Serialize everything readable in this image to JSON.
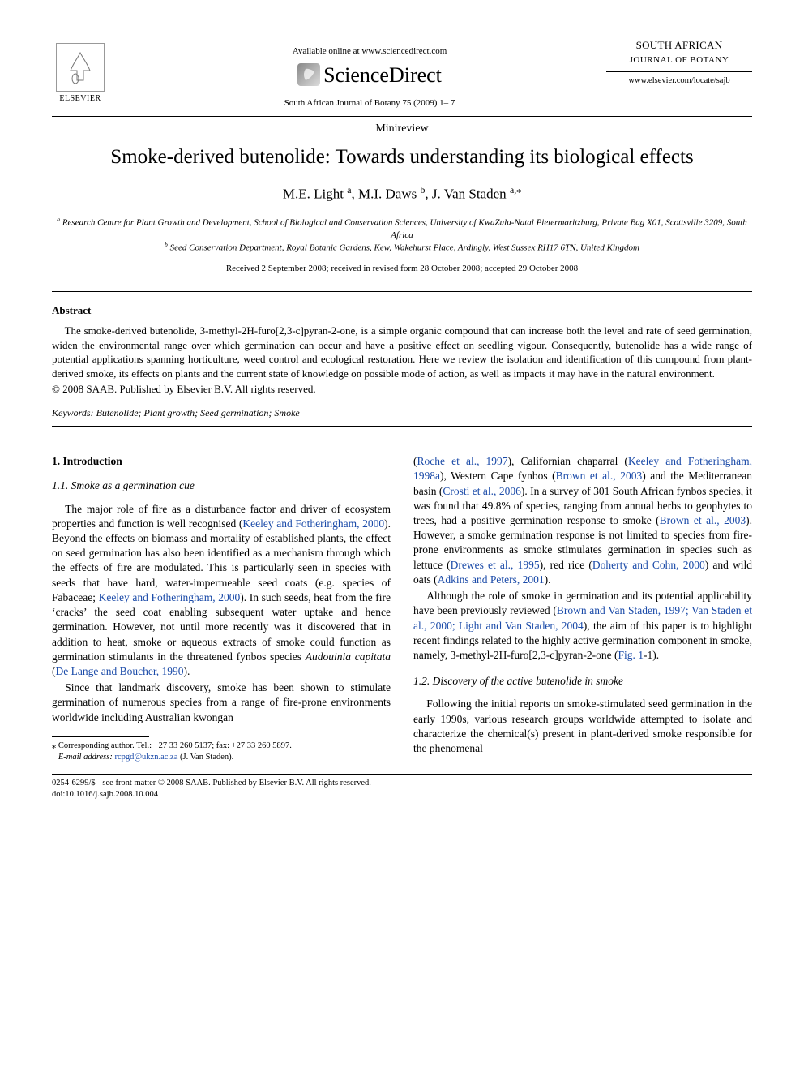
{
  "header": {
    "elsevier_label": "ELSEVIER",
    "available_online": "Available online at www.sciencedirect.com",
    "sciencedirect": "ScienceDirect",
    "journal_ref": "South African Journal of Botany 75 (2009) 1– 7",
    "journal_title_1": "SOUTH AFRICAN",
    "journal_title_2": "JOURNAL OF BOTANY",
    "journal_url": "www.elsevier.com/locate/sajb"
  },
  "article": {
    "type": "Minireview",
    "title": "Smoke-derived butenolide: Towards understanding its biological effects",
    "authors_html": "M.E. Light <span class='sup'>a</span>, M.I. Daws <span class='sup'>b</span>, J. Van Staden <span class='sup'>a,⁎</span>",
    "aff_a": "Research Centre for Plant Growth and Development, School of Biological and Conservation Sciences, University of KwaZulu-Natal Pietermaritzburg, Private Bag X01, Scottsville 3209, South Africa",
    "aff_a_sup": "a",
    "aff_b": "Seed Conservation Department, Royal Botanic Gardens, Kew, Wakehurst Place, Ardingly, West Sussex RH17 6TN, United Kingdom",
    "aff_b_sup": "b",
    "dates": "Received 2 September 2008; received in revised form 28 October 2008; accepted 29 October 2008"
  },
  "abstract": {
    "heading": "Abstract",
    "body": "The smoke-derived butenolide, 3-methyl-2H-furo[2,3-c]pyran-2-one, is a simple organic compound that can increase both the level and rate of seed germination, widen the environmental range over which germination can occur and have a positive effect on seedling vigour. Consequently, butenolide has a wide range of potential applications spanning horticulture, weed control and ecological restoration. Here we review the isolation and identification of this compound from plant-derived smoke, its effects on plants and the current state of knowledge on possible mode of action, as well as impacts it may have in the natural environment.",
    "copyright": "© 2008 SAAB. Published by Elsevier B.V. All rights reserved.",
    "keywords_label": "Keywords:",
    "keywords": "Butenolide; Plant growth; Seed germination; Smoke"
  },
  "body": {
    "sec1": "1. Introduction",
    "sub11": "1.1. Smoke as a germination cue",
    "p1a": "The major role of fire as a disturbance factor and driver of ecosystem properties and function is well recognised (",
    "p1_ref1": "Keeley and Fotheringham, 2000",
    "p1b": "). Beyond the effects on biomass and mortality of established plants, the effect on seed germination has also been identified as a mechanism through which the effects of fire are modulated. This is particularly seen in species with seeds that have hard, water-impermeable seed coats (e.g. species of Fabaceae; ",
    "p1_ref2": "Keeley and Fotheringham, 2000",
    "p1c": "). In such seeds, heat from the fire ‘cracks’ the seed coat enabling subsequent water uptake and hence germination. However, not until more recently was it discovered that in addition to heat, smoke or aqueous extracts of smoke could function as germination stimulants in the threatened fynbos species ",
    "p1_species": "Audouinia capitata",
    "p1d": " (",
    "p1_ref3": "De Lange and Boucher, 1990",
    "p1e": ").",
    "p2a": "Since that landmark discovery, smoke has been shown to stimulate germination of numerous species from a range of fire-prone environments worldwide including Australian kwongan",
    "p3a": "(",
    "p3_ref1": "Roche et al., 1997",
    "p3b": "), Californian chaparral (",
    "p3_ref2": "Keeley and Fotheringham, 1998a",
    "p3c": "), Western Cape fynbos (",
    "p3_ref3": "Brown et al., 2003",
    "p3d": ") and the Mediterranean basin (",
    "p3_ref4": "Crosti et al., 2006",
    "p3e": "). In a survey of 301 South African fynbos species, it was found that 49.8% of species, ranging from annual herbs to geophytes to trees, had a positive germination response to smoke (",
    "p3_ref5": "Brown et al., 2003",
    "p3f": "). However, a smoke germination response is not limited to species from fire-prone environments as smoke stimulates germination in species such as lettuce (",
    "p3_ref6": "Drewes et al., 1995",
    "p3g": "), red rice (",
    "p3_ref7": "Doherty and Cohn, 2000",
    "p3h": ") and wild oats (",
    "p3_ref8": "Adkins and Peters, 2001",
    "p3i": ").",
    "p4a": "Although the role of smoke in germination and its potential applicability have been previously reviewed (",
    "p4_ref1": "Brown and Van Staden, 1997; Van Staden et al., 2000; Light and Van Staden, 2004",
    "p4b": "), the aim of this paper is to highlight recent findings related to the highly active germination component in smoke, namely, 3-methyl-2H-furo[2,3-c]pyran-2-one (",
    "p4_ref2": "Fig. 1",
    "p4c": "-1).",
    "sub12": "1.2. Discovery of the active butenolide in smoke",
    "p5a": "Following the initial reports on smoke-stimulated seed germination in the early 1990s, various research groups worldwide attempted to isolate and characterize the chemical(s) present in plant-derived smoke responsible for the phenomenal"
  },
  "footnote": {
    "marker": "⁎",
    "corr": "Corresponding author. Tel.: +27 33 260 5137; fax: +27 33 260 5897.",
    "email_label": "E-mail address:",
    "email": "rcpgd@ukzn.ac.za",
    "email_author": "(J. Van Staden)."
  },
  "bottom": {
    "line1": "0254-6299/$ - see front matter © 2008 SAAB. Published by Elsevier B.V. All rights reserved.",
    "line2": "doi:10.1016/j.sajb.2008.10.004"
  },
  "colors": {
    "link": "#1a4aa8",
    "text": "#000000",
    "bg": "#ffffff"
  }
}
